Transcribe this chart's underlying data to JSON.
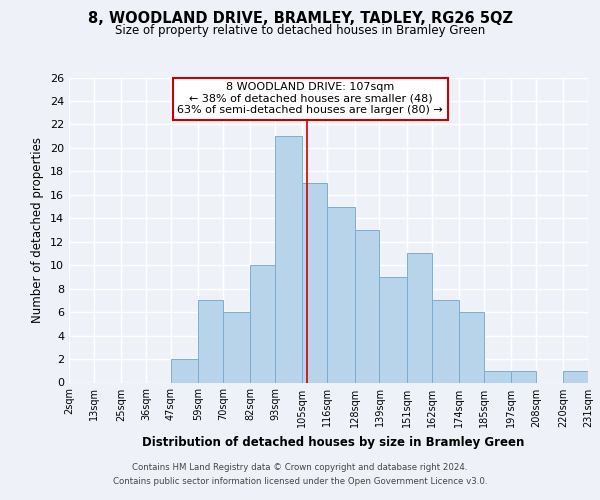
{
  "title": "8, WOODLAND DRIVE, BRAMLEY, TADLEY, RG26 5QZ",
  "subtitle": "Size of property relative to detached houses in Bramley Green",
  "xlabel": "Distribution of detached houses by size in Bramley Green",
  "ylabel": "Number of detached properties",
  "bin_edges": [
    2,
    13,
    25,
    36,
    47,
    59,
    70,
    82,
    93,
    105,
    116,
    128,
    139,
    151,
    162,
    174,
    185,
    197,
    208,
    220,
    231
  ],
  "counts": [
    0,
    0,
    0,
    0,
    2,
    7,
    6,
    10,
    21,
    17,
    15,
    13,
    9,
    11,
    7,
    6,
    1,
    1,
    0,
    1
  ],
  "bar_color": "#b8d4ea",
  "bar_edge_color": "#7aaed0",
  "property_size": 107,
  "vline_color": "#cc0000",
  "annotation_title": "8 WOODLAND DRIVE: 107sqm",
  "annotation_line1": "← 38% of detached houses are smaller (48)",
  "annotation_line2": "63% of semi-detached houses are larger (80) →",
  "annotation_box_edge": "#cc0000",
  "ylim": [
    0,
    26
  ],
  "yticks": [
    0,
    2,
    4,
    6,
    8,
    10,
    12,
    14,
    16,
    18,
    20,
    22,
    24,
    26
  ],
  "tick_labels": [
    "2sqm",
    "13sqm",
    "25sqm",
    "36sqm",
    "47sqm",
    "59sqm",
    "70sqm",
    "82sqm",
    "93sqm",
    "105sqm",
    "116sqm",
    "128sqm",
    "139sqm",
    "151sqm",
    "162sqm",
    "174sqm",
    "185sqm",
    "197sqm",
    "208sqm",
    "220sqm",
    "231sqm"
  ],
  "footer1": "Contains HM Land Registry data © Crown copyright and database right 2024.",
  "footer2": "Contains public sector information licensed under the Open Government Licence v3.0.",
  "bg_color": "#eef2f8"
}
